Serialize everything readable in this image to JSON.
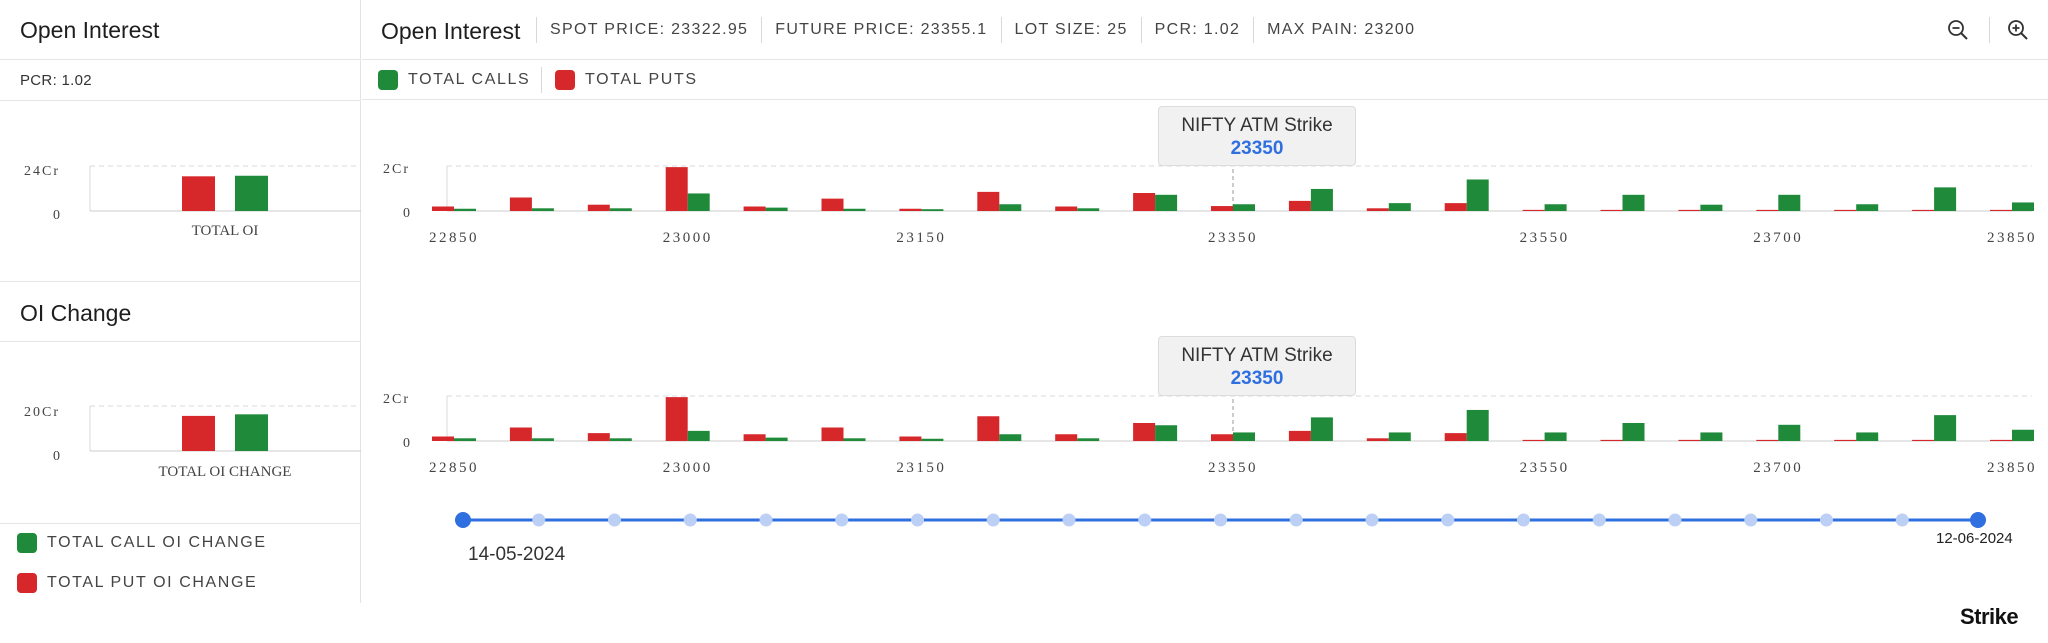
{
  "left": {
    "oi_title": "Open Interest",
    "pcr": "PCR: 1.02",
    "total_oi_chart": {
      "ytick_top": "24Cr",
      "ytick_zero": "0",
      "xlabel": "TOTAL OI",
      "ymax": 24,
      "puts": 18.5,
      "calls": 18.8
    },
    "oi_change_title": "OI Change",
    "oi_change_chart": {
      "ytick_top": "20Cr",
      "ytick_zero": "0",
      "xlabel": "TOTAL OI CHANGE",
      "ymax": 20,
      "puts": 15.6,
      "calls": 16.3
    },
    "legend": [
      {
        "label": "TOTAL CALL OI CHANGE",
        "color": "#1e8a3a"
      },
      {
        "label": "TOTAL PUT OI CHANGE",
        "color": "#d6272b"
      }
    ]
  },
  "header": {
    "title": "Open Interest",
    "stats": [
      "SPOT PRICE: 23322.95",
      "FUTURE PRICE: 23355.1",
      "LOT SIZE: 25",
      "PCR: 1.02",
      "MAX PAIN: 23200"
    ],
    "zoom_out_icon": "zoom-out-icon",
    "zoom_in_icon": "zoom-in-icon"
  },
  "legend": {
    "calls": "TOTAL CALLS",
    "puts": "TOTAL PUTS",
    "calls_color": "#1e8a3a",
    "puts_color": "#d6272b"
  },
  "tooltip": {
    "title": "NIFTY ATM Strike",
    "value": "23350"
  },
  "timeline": {
    "start_date": "14-05-2024",
    "end_date": "12-06-2024",
    "stops": 21,
    "accent": "#2f6fe0"
  },
  "brand": "Strike",
  "chart_data": [
    {
      "type": "bar",
      "ytick_top": "2Cr",
      "ytick_zero": "0",
      "ymax": 2,
      "atm_strike": 23350,
      "tick_labels": [
        "22850",
        "23000",
        "23150",
        "23350",
        "23550",
        "23700",
        "23850"
      ],
      "x": [
        22850,
        22900,
        22950,
        23000,
        23050,
        23100,
        23150,
        23200,
        23250,
        23300,
        23350,
        23400,
        23450,
        23500,
        23550,
        23600,
        23650,
        23700,
        23750,
        23800,
        23850
      ],
      "series": [
        {
          "name": "TOTAL PUTS",
          "color": "#d6272b",
          "values": [
            0.2,
            0.6,
            0.28,
            1.95,
            0.2,
            0.55,
            0.1,
            0.85,
            0.2,
            0.8,
            0.22,
            0.45,
            0.12,
            0.35,
            0.05,
            0.05,
            0.05,
            0.05,
            0.05,
            0.05,
            0.05
          ]
        },
        {
          "name": "TOTAL CALLS",
          "color": "#1e8a3a",
          "values": [
            0.1,
            0.12,
            0.12,
            0.78,
            0.15,
            0.1,
            0.08,
            0.3,
            0.12,
            0.72,
            0.3,
            0.98,
            0.35,
            1.4,
            0.3,
            0.72,
            0.28,
            0.72,
            0.3,
            1.05,
            0.38
          ]
        }
      ]
    },
    {
      "type": "bar",
      "ytick_top": "2Cr",
      "ytick_zero": "0",
      "ymax": 2,
      "atm_strike": 23350,
      "tick_labels": [
        "22850",
        "23000",
        "23150",
        "23350",
        "23550",
        "23700",
        "23850"
      ],
      "x": [
        22850,
        22900,
        22950,
        23000,
        23050,
        23100,
        23150,
        23200,
        23250,
        23300,
        23350,
        23400,
        23450,
        23500,
        23550,
        23600,
        23650,
        23700,
        23750,
        23800,
        23850
      ],
      "series": [
        {
          "name": "TOTAL PUTS",
          "color": "#d6272b",
          "values": [
            0.2,
            0.6,
            0.35,
            1.95,
            0.3,
            0.6,
            0.2,
            1.1,
            0.3,
            0.8,
            0.3,
            0.45,
            0.12,
            0.35,
            0.05,
            0.05,
            0.05,
            0.05,
            0.05,
            0.05,
            0.05
          ]
        },
        {
          "name": "TOTAL CALLS",
          "color": "#1e8a3a",
          "values": [
            0.12,
            0.12,
            0.12,
            0.45,
            0.15,
            0.12,
            0.1,
            0.3,
            0.12,
            0.7,
            0.38,
            1.05,
            0.38,
            1.38,
            0.38,
            0.8,
            0.38,
            0.72,
            0.38,
            1.15,
            0.5
          ]
        }
      ]
    }
  ]
}
